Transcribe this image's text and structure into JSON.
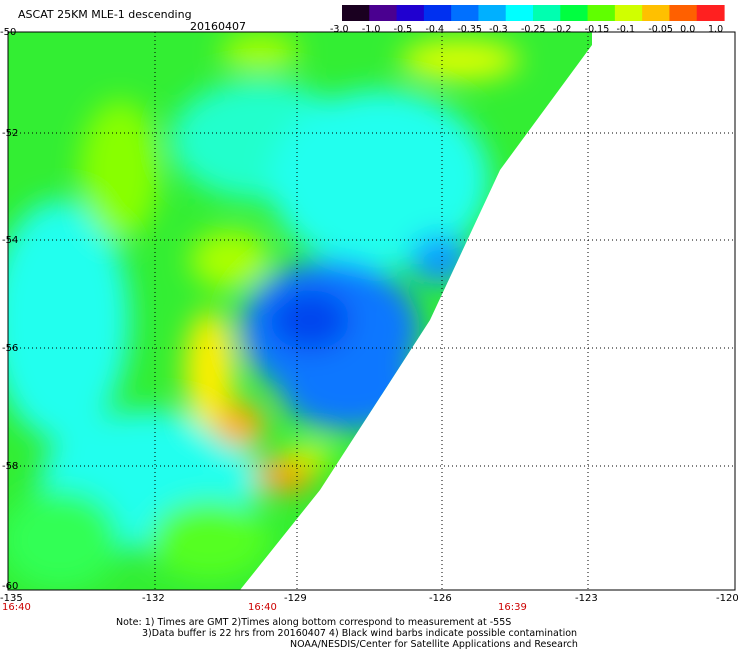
{
  "header": {
    "title": "ASCAT 25KM MLE-1 descending",
    "date": "20160407"
  },
  "colorbar": {
    "labels": [
      "-3.0",
      "-1.0",
      "-0.5",
      "-0.4",
      "-0.35",
      "-0.3",
      "-0.25",
      "-0.2",
      "-0.15",
      "-0.1",
      "-0.05",
      "0.0",
      "1.0"
    ],
    "colors": [
      "#1a0020",
      "#4a0090",
      "#2000d0",
      "#0030f0",
      "#0070ff",
      "#00b0ff",
      "#00ffff",
      "#00ffb0",
      "#00ff40",
      "#60ff00",
      "#d0ff00",
      "#ffc000",
      "#ff6000",
      "#ff2020"
    ]
  },
  "axes": {
    "lat_labels": [
      "-50",
      "-52",
      "-54",
      "-56",
      "-58",
      "-60"
    ],
    "lon_labels": [
      "-135",
      "-132",
      "-129",
      "-126",
      "-123",
      "-120"
    ],
    "times": [
      "16:40",
      "16:40",
      "16:39"
    ]
  },
  "notes": {
    "line1": "Note: 1) Times are GMT 2)Times along bottom correspond to measurement at -55S",
    "line2": "3)Data buffer is 22 hrs from 20160407 4) Black wind barbs indicate possible contamination",
    "line3": "NOAA/NESDIS/Center for Satellite Applications and Research"
  }
}
